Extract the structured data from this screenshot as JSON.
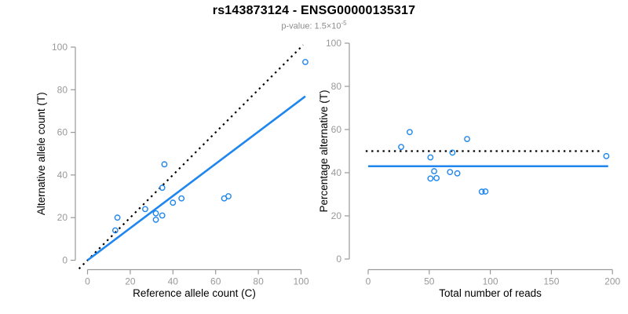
{
  "header": {
    "title": "rs143873124 - ENSG00000135317",
    "pvalue_text": "p-value: 1.5×10",
    "pvalue_exponent": "-5"
  },
  "colors": {
    "accent_blue": "#1E86EE",
    "dotted_black": "#000000",
    "axis_gray": "#999999",
    "label_black": "#000000",
    "subtitle_gray": "#8C8C8C"
  },
  "chart_data": [
    {
      "id": "allele-count-scatter",
      "type": "scatter",
      "xlabel": "Reference allele count (C)",
      "ylabel": "Alternative allele count (T)",
      "xlim": [
        0,
        100
      ],
      "ylim": [
        0,
        100
      ],
      "xticks": [
        0,
        20,
        40,
        60,
        80,
        100
      ],
      "yticks": [
        0,
        20,
        40,
        60,
        80,
        100
      ],
      "grid": false,
      "marker": "open-circle",
      "points_xy": [
        [
          13,
          14
        ],
        [
          14,
          20
        ],
        [
          27,
          24
        ],
        [
          32,
          19
        ],
        [
          32,
          22
        ],
        [
          35,
          21
        ],
        [
          35,
          34
        ],
        [
          36,
          45
        ],
        [
          40,
          27
        ],
        [
          44,
          29
        ],
        [
          64,
          29
        ],
        [
          66,
          30
        ],
        [
          102,
          93
        ]
      ],
      "lines": [
        {
          "id": "identity-line",
          "style": "dotted",
          "color": "#000000",
          "from": [
            -4,
            -4
          ],
          "to": [
            101,
            101
          ]
        },
        {
          "id": "fit-line",
          "style": "solid",
          "color": "#1E86EE",
          "from": [
            0,
            0
          ],
          "to": [
            102,
            76.9
          ]
        }
      ]
    },
    {
      "id": "percentage-scatter",
      "type": "scatter",
      "xlabel": "Total number of reads",
      "ylabel": "Percentage alternative (T)",
      "xlim": [
        0,
        200
      ],
      "ylim": [
        0,
        100
      ],
      "xticks": [
        0,
        50,
        100,
        150,
        200
      ],
      "yticks": [
        0,
        20,
        40,
        60,
        80,
        100
      ],
      "grid": false,
      "marker": "open-circle",
      "points_xy": [
        [
          27,
          51.9
        ],
        [
          34,
          58.8
        ],
        [
          51,
          47.1
        ],
        [
          51,
          37.3
        ],
        [
          54,
          40.7
        ],
        [
          56,
          37.5
        ],
        [
          69,
          49.3
        ],
        [
          81,
          55.6
        ],
        [
          67,
          40.3
        ],
        [
          73,
          39.7
        ],
        [
          93,
          31.2
        ],
        [
          96,
          31.3
        ],
        [
          195,
          47.7
        ]
      ],
      "lines": [
        {
          "id": "fifty-percent-line",
          "style": "dotted",
          "color": "#000000",
          "from": [
            -2,
            50
          ],
          "to": [
            192,
            50
          ]
        },
        {
          "id": "mean-line",
          "style": "solid",
          "color": "#1E86EE",
          "from": [
            0,
            43
          ],
          "to": [
            196.5,
            43
          ]
        }
      ]
    }
  ]
}
